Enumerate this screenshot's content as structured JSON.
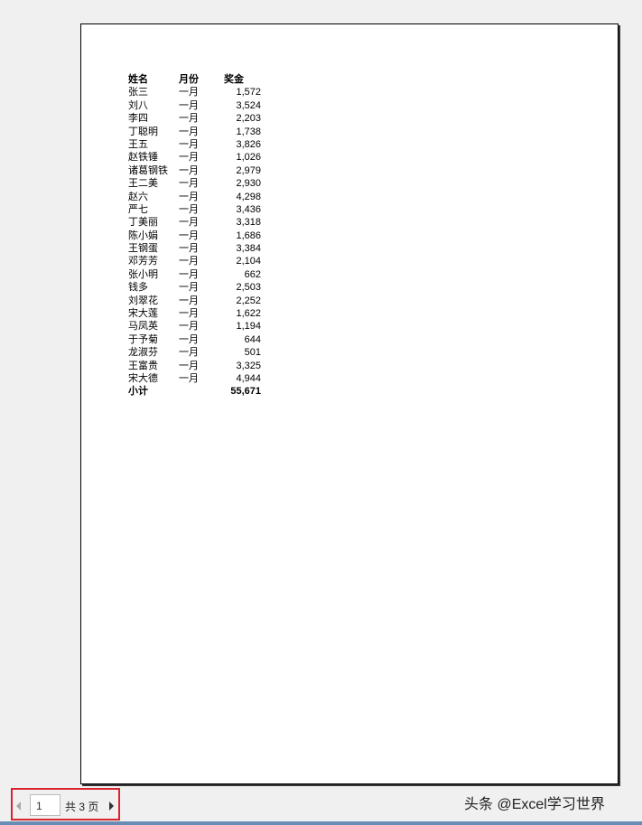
{
  "table": {
    "headers": [
      "姓名",
      "月份",
      "奖金"
    ],
    "rows": [
      [
        "张三",
        "一月",
        "1,572"
      ],
      [
        "刘八",
        "一月",
        "3,524"
      ],
      [
        "李四",
        "一月",
        "2,203"
      ],
      [
        "丁聪明",
        "一月",
        "1,738"
      ],
      [
        "王五",
        "一月",
        "3,826"
      ],
      [
        "赵铁锤",
        "一月",
        "1,026"
      ],
      [
        "诸葛钢铁",
        "一月",
        "2,979"
      ],
      [
        "王二美",
        "一月",
        "2,930"
      ],
      [
        "赵六",
        "一月",
        "4,298"
      ],
      [
        "严七",
        "一月",
        "3,436"
      ],
      [
        "丁美丽",
        "一月",
        "3,318"
      ],
      [
        "陈小娟",
        "一月",
        "1,686"
      ],
      [
        "王钢蛋",
        "一月",
        "3,384"
      ],
      [
        "邓芳芳",
        "一月",
        "2,104"
      ],
      [
        "张小明",
        "一月",
        "662"
      ],
      [
        "钱多",
        "一月",
        "2,503"
      ],
      [
        "刘翠花",
        "一月",
        "2,252"
      ],
      [
        "宋大莲",
        "一月",
        "1,622"
      ],
      [
        "马凤英",
        "一月",
        "1,194"
      ],
      [
        "于予菊",
        "一月",
        "644"
      ],
      [
        "龙淑芬",
        "一月",
        "501"
      ],
      [
        "王富贵",
        "一月",
        "3,325"
      ],
      [
        "宋大德",
        "一月",
        "4,944"
      ]
    ],
    "subtotal": {
      "label": "小计",
      "value": "55,671"
    }
  },
  "pager": {
    "current": "1",
    "total_label": "共 3 页"
  },
  "watermark": "头条 @Excel学习世界",
  "colors": {
    "highlight": "#d9232d"
  }
}
